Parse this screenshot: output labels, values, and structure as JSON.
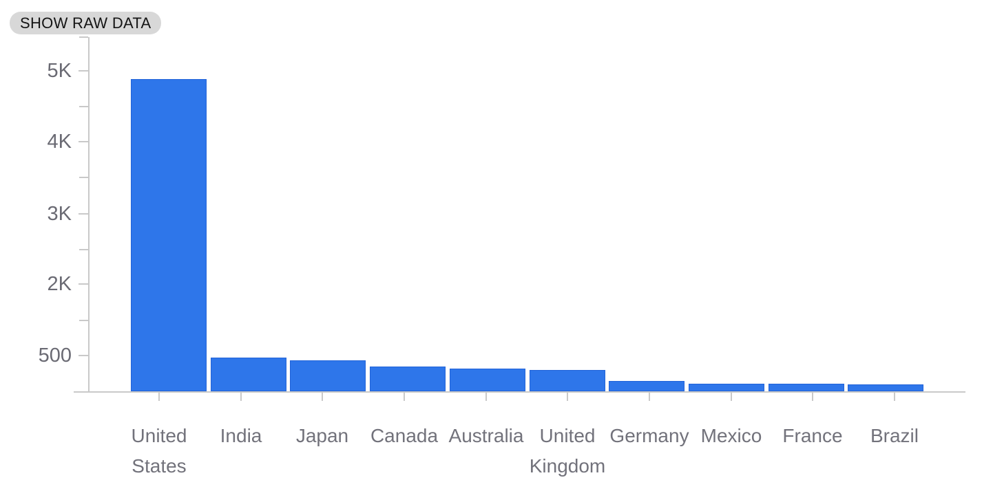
{
  "button": {
    "label": "SHOW RAW DATA"
  },
  "chart_data": {
    "type": "bar",
    "title": "",
    "xlabel": "",
    "ylabel": "",
    "categories": [
      "United States",
      "India",
      "Japan",
      "Canada",
      "Australia",
      "United Kingdom",
      "Germany",
      "Mexico",
      "France",
      "Brazil"
    ],
    "values": [
      4880,
      470,
      435,
      350,
      320,
      300,
      140,
      110,
      107,
      95
    ],
    "y_tick_labels": [
      "5K",
      "4K",
      "3K",
      "2K",
      "500"
    ],
    "y_tick_values": [
      5000,
      4000,
      3000,
      2000,
      500
    ],
    "ylim": [
      0,
      5480
    ],
    "grid": false,
    "legend": false,
    "colors": {
      "bar_fill": "#2e76ea",
      "bar_border": "#2263d8",
      "axis": "#c9c9c9",
      "y_label_text": "#6a6a73",
      "x_label_text": "#72727b",
      "button_bg": "#d8d8d8",
      "button_text": "#141414"
    }
  }
}
